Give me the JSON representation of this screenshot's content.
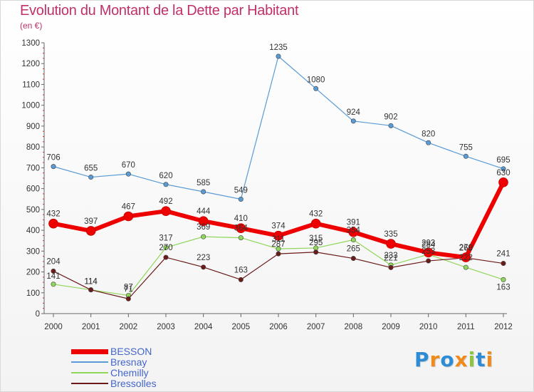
{
  "header": {
    "title": "Evolution du Montant de la Dette par Habitant",
    "subtitle": "(en €)"
  },
  "logo": {
    "letters": [
      "P",
      "r",
      "o",
      "x",
      "i",
      "t",
      "i"
    ],
    "colors": [
      "#2e8bd6",
      "#f08a1c",
      "#2e8bd6",
      "#f08a1c",
      "#8cc63f",
      "#2e8bd6",
      "#f08a1c"
    ]
  },
  "chart_data": {
    "type": "line",
    "title": "Evolution du Montant de la Dette par Habitant",
    "subtitle": "(en €)",
    "xlabel": "",
    "ylabel": "",
    "x": [
      "2000",
      "2001",
      "2002",
      "2003",
      "2004",
      "2005",
      "2006",
      "2007",
      "2008",
      "2009",
      "2010",
      "2011",
      "2012"
    ],
    "ylim": [
      0,
      1300
    ],
    "yticks": [
      0,
      100,
      200,
      300,
      400,
      500,
      600,
      700,
      800,
      900,
      1000,
      1100,
      1200,
      1300
    ],
    "grid": false,
    "legend_position": "bottom-left",
    "series": [
      {
        "name": "BESSON",
        "color": "#ee0000",
        "values": [
          432,
          397,
          467,
          492,
          444,
          410,
          374,
          432,
          391,
          335,
          293,
          270,
          630
        ]
      },
      {
        "name": "Bresnay",
        "color": "#5a9bd5",
        "values": [
          706,
          655,
          670,
          620,
          585,
          549,
          1235,
          1080,
          924,
          902,
          820,
          755,
          695
        ]
      },
      {
        "name": "Chemilly",
        "color": "#8fd65a",
        "values": [
          141,
          114,
          87,
          317,
          369,
          364,
          311,
          315,
          354,
          233,
          284,
          222,
          163
        ]
      },
      {
        "name": "Bressolles",
        "color": "#6b1a1a",
        "values": [
          204,
          114,
          71,
          270,
          223,
          163,
          287,
          295,
          265,
          221,
          253,
          268,
          241
        ]
      }
    ]
  }
}
